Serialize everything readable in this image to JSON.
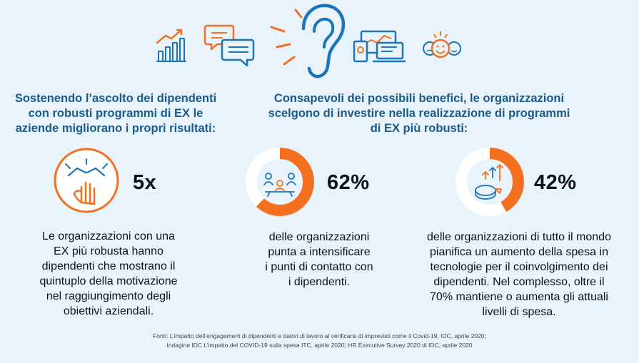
{
  "colors": {
    "background": "#e9f3fb",
    "accent_orange": "#f37021",
    "icon_blue": "#1b75bb",
    "heading_blue": "#1a5a8a",
    "ring_track": "#ffffff"
  },
  "top_icons": [
    "growth-chart-icon",
    "chat-bubbles-icon",
    "listening-ear-icon",
    "devices-icon",
    "emoji-faces-icon"
  ],
  "left_heading": [
    "Sostenendo l’ascolto dei dipendenti",
    "con robusti programmi di EX le",
    "aziende migliorano i propri risultati:"
  ],
  "right_heading": [
    "Consapevoli dei possibili benefici, le organizzazioni",
    "scelgono di investire nella realizzazione di programmi",
    "di EX più robusti:"
  ],
  "stats": [
    {
      "value": "5x",
      "icon": "hands-together-icon",
      "text": [
        "Le organizzazioni con una",
        "EX più robusta hanno",
        "dipendenti che mostrano il",
        "quintuplo della motivazione",
        "nel raggiungimento degli",
        "obiettivi aziendali."
      ]
    },
    {
      "value": "62%",
      "fraction": 0.62,
      "icon": "team-meeting-icon",
      "text": [
        "delle organizzazioni",
        "punta a intensificare",
        "i punti di contatto con",
        "i dipendenti."
      ]
    },
    {
      "value": "42%",
      "fraction": 0.42,
      "icon": "pie-growth-icon",
      "text": [
        "delle organizzazioni di tutto il mondo",
        "pianifica un aumento della spesa in",
        "tecnologie per il coinvolgimento dei",
        "dipendenti. Nel complesso, oltre il",
        "70% mantiene o aumenta gli attuali",
        "livelli di spesa."
      ]
    }
  ],
  "sources": [
    "Fonti: L’impatto dell’engagement di dipendenti e datori di lavoro al verificarsi di imprevisti come il Covid-19, IDC, aprile 2020;",
    "Indagine IDC L’impatto del COVID-19 sulla spesa ITC, aprile 2020; HR Executive Survey 2020 di IDC, aprile 2020"
  ]
}
